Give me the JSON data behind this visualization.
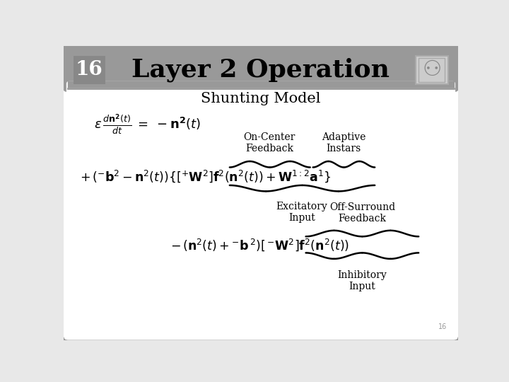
{
  "title": "Layer 2 Operation",
  "slide_number": "16",
  "subtitle": "Shunting Model",
  "bg_color": "#e8e8e8",
  "header_bg": "#999999",
  "content_bg": "#ffffff",
  "border_color": "#999999",
  "label_on_center": "On-Center\nFeedback",
  "label_adaptive": "Adaptive\nInstars",
  "label_excitatory": "Excitatory\nInput",
  "label_off_surround": "Off-Surround\nFeedback",
  "label_inhibitory": "Inhibitory\nInput",
  "title_fontsize": 26,
  "slide_num_fontsize": 20,
  "subtitle_fontsize": 15,
  "label_fontsize": 10
}
